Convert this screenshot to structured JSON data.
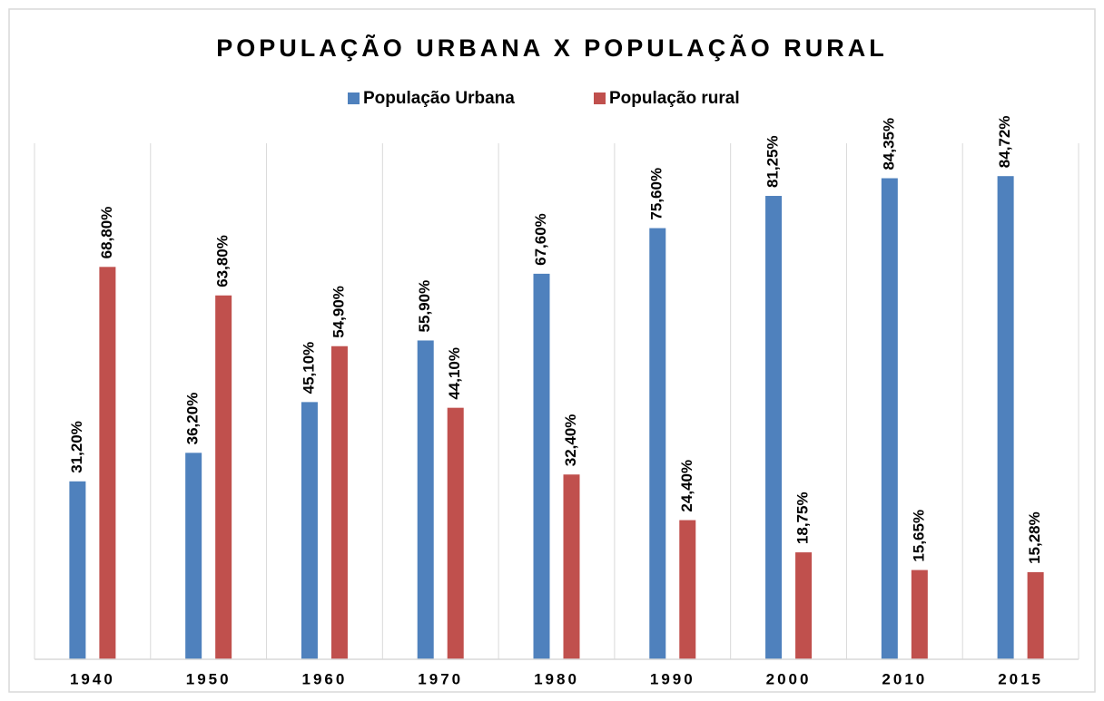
{
  "chart_data": {
    "type": "bar",
    "title": "POPULAÇÃO URBANA X POPULAÇÃO RURAL",
    "categories": [
      "1940",
      "1950",
      "1960",
      "1970",
      "1980",
      "1990",
      "2000",
      "2010",
      "2015"
    ],
    "series": [
      {
        "name": "População Urbana",
        "color": "#4f81bd",
        "values": [
          31.2,
          36.2,
          45.1,
          55.9,
          67.6,
          75.6,
          81.25,
          84.35,
          84.72
        ],
        "value_labels": [
          "31,20%",
          "36,20%",
          "45,10%",
          "55,90%",
          "67,60%",
          "75,60%",
          "81,25%",
          "84,35%",
          "84,72%"
        ]
      },
      {
        "name": "População rural",
        "color": "#c0504d",
        "values": [
          68.8,
          63.8,
          54.9,
          44.1,
          32.4,
          24.4,
          18.75,
          15.65,
          15.28
        ],
        "value_labels": [
          "68,80%",
          "63,80%",
          "54,90%",
          "44,10%",
          "32,40%",
          "24,40%",
          "18,75%",
          "15,65%",
          "15,28%"
        ]
      }
    ],
    "ylim": [
      0,
      90
    ],
    "legend": "top"
  }
}
